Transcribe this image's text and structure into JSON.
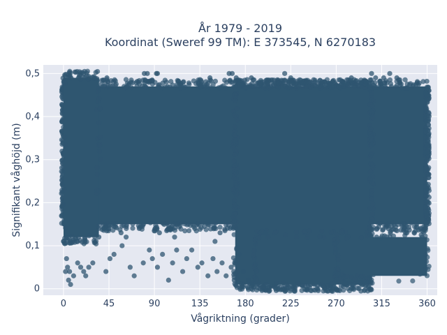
{
  "chart_data": {
    "type": "scatter",
    "title_line1": "År 1979 - 2019",
    "title_line2": "Koordinat (Sweref 99 TM): E 373545, N 6270183",
    "xlabel": "Vågriktning (grader)",
    "ylabel": "Signifikant våghöjd (m)",
    "xlim": [
      -20,
      370
    ],
    "ylim": [
      -0.015,
      0.52
    ],
    "xticks": [
      0,
      45,
      90,
      135,
      180,
      225,
      270,
      315,
      360
    ],
    "xtick_labels": [
      "0",
      "45",
      "90",
      "135",
      "180",
      "225",
      "270",
      "315",
      "360"
    ],
    "yticks": [
      0,
      0.1,
      0.2,
      0.3,
      0.4,
      0.5
    ],
    "ytick_labels": [
      "0",
      "0,1",
      "0,2",
      "0,3",
      "0,4",
      "0,5"
    ],
    "grid": true,
    "marker_color": "#2f5670",
    "plot_bg": "#e5e8f1",
    "dense_regions": [
      {
        "x": [
          0,
          360
        ],
        "y": [
          0.15,
          0.47
        ]
      },
      {
        "x": [
          0,
          35
        ],
        "y": [
          0.12,
          0.49
        ]
      },
      {
        "x": [
          170,
          305
        ],
        "y": [
          0.01,
          0.47
        ]
      },
      {
        "x": [
          190,
          270
        ],
        "y": [
          0.01,
          0.12
        ]
      },
      {
        "x": [
          270,
          360
        ],
        "y": [
          0.03,
          0.12
        ]
      }
    ],
    "series": [
      {
        "values": [
          [
            0,
            0.11
          ],
          [
            2,
            0.04
          ],
          [
            3,
            0.07
          ],
          [
            4,
            0.05
          ],
          [
            5,
            0.02
          ],
          [
            6,
            0.04
          ],
          [
            7,
            0.01
          ],
          [
            10,
            0.03
          ],
          [
            14,
            0.06
          ],
          [
            17,
            0.05
          ],
          [
            20,
            0.04
          ],
          [
            22,
            0.03
          ],
          [
            25,
            0.05
          ],
          [
            29,
            0.06
          ],
          [
            42,
            0.04
          ],
          [
            46,
            0.07
          ],
          [
            50,
            0.08
          ],
          [
            58,
            0.1
          ],
          [
            62,
            0.12
          ],
          [
            66,
            0.05
          ],
          [
            70,
            0.03
          ],
          [
            79,
            0.06
          ],
          [
            85,
            0.09
          ],
          [
            88,
            0.07
          ],
          [
            93,
            0.05
          ],
          [
            98,
            0.08
          ],
          [
            104,
            0.02
          ],
          [
            108,
            0.06
          ],
          [
            112,
            0.09
          ],
          [
            118,
            0.04
          ],
          [
            122,
            0.07
          ],
          [
            127,
            0.09
          ],
          [
            133,
            0.05
          ],
          [
            137,
            0.06
          ],
          [
            143,
            0.03
          ],
          [
            148,
            0.07
          ],
          [
            152,
            0.04
          ],
          [
            157,
            0.06
          ],
          [
            161,
            0.03
          ],
          [
            166,
            0.05
          ],
          [
            169,
            0.02
          ],
          [
            174,
            0.08
          ],
          [
            178,
            0.04
          ],
          [
            183,
            0.02
          ],
          [
            187,
            0.01
          ],
          [
            20,
            0.5
          ],
          [
            43,
            0.49
          ],
          [
            80,
            0.5
          ],
          [
            83,
            0.5
          ],
          [
            92,
            0.5
          ],
          [
            93,
            0.5
          ],
          [
            145,
            0.49
          ],
          [
            164,
            0.5
          ],
          [
            167,
            0.5
          ],
          [
            171,
            0.49
          ],
          [
            186,
            0.49
          ],
          [
            219,
            0.5
          ],
          [
            225,
            0.49
          ],
          [
            285,
            0.49
          ],
          [
            305,
            0.5
          ],
          [
            309,
            0.49
          ],
          [
            317,
            0.49
          ],
          [
            323,
            0.5
          ],
          [
            330,
            0.49
          ],
          [
            150,
            0.11
          ],
          [
            155,
            0.13
          ],
          [
            130,
            0.14
          ],
          [
            110,
            0.12
          ],
          [
            95,
            0.13
          ],
          [
            75,
            0.14
          ],
          [
            57,
            0.13
          ],
          [
            40,
            0.14
          ],
          [
            35,
            0.12
          ],
          [
            200,
            0.13
          ],
          [
            310,
            0.12
          ],
          [
            340,
            0.13
          ],
          [
            355,
            0.12
          ]
        ]
      }
    ]
  }
}
